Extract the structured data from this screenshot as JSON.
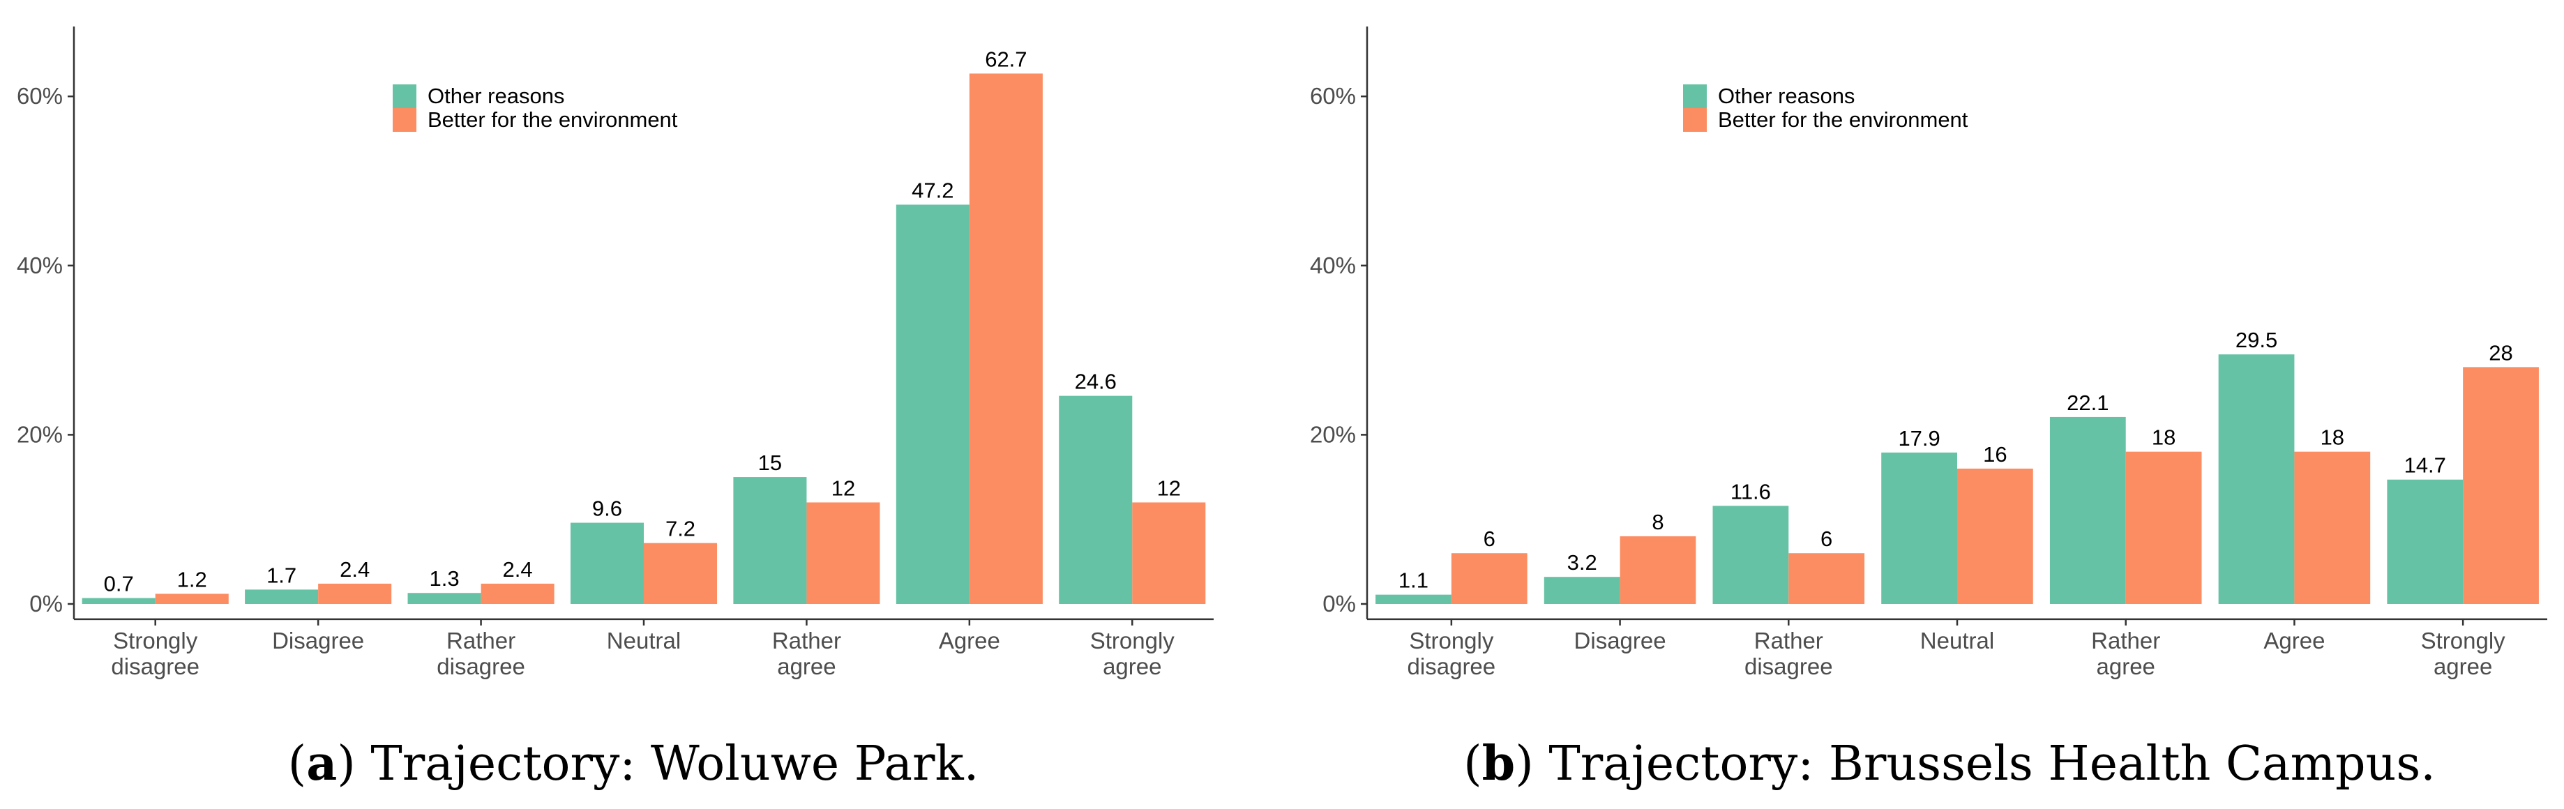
{
  "colors": {
    "other": "#66c2a5",
    "env": "#fc8d62",
    "axis": "#333333"
  },
  "chart_data": [
    {
      "type": "bar",
      "title": "",
      "xlabel": "",
      "ylabel": "",
      "ylim": [
        0,
        68
      ],
      "y_ticks": [
        "0%",
        "20%",
        "40%",
        "60%"
      ],
      "y_tick_values": [
        0,
        20,
        40,
        60
      ],
      "legend": [
        "Other reasons",
        "Better for the environment"
      ],
      "categories": [
        "Strongly\ndisagree",
        "Disagree",
        "Rather\ndisagree",
        "Neutral",
        "Rather\nagree",
        "Agree",
        "Strongly\nagree"
      ],
      "series": [
        {
          "name": "Other reasons",
          "values": [
            0.7,
            1.7,
            1.3,
            9.6,
            15,
            47.2,
            24.6
          ]
        },
        {
          "name": "Better for the environment",
          "values": [
            1.2,
            2.4,
            2.4,
            7.2,
            12,
            62.7,
            12
          ]
        }
      ],
      "caption": {
        "letter": "a",
        "text": "Trajectory: Woluwe Park."
      }
    },
    {
      "type": "bar",
      "title": "",
      "xlabel": "",
      "ylabel": "",
      "ylim": [
        0,
        68
      ],
      "y_ticks": [
        "0%",
        "20%",
        "40%",
        "60%"
      ],
      "y_tick_values": [
        0,
        20,
        40,
        60
      ],
      "legend": [
        "Other reasons",
        "Better for the environment"
      ],
      "categories": [
        "Strongly\ndisagree",
        "Disagree",
        "Rather\ndisagree",
        "Neutral",
        "Rather\nagree",
        "Agree",
        "Strongly\nagree"
      ],
      "series": [
        {
          "name": "Other reasons",
          "values": [
            1.1,
            3.2,
            11.6,
            17.9,
            22.1,
            29.5,
            14.7
          ]
        },
        {
          "name": "Better for the environment",
          "values": [
            6,
            8,
            6,
            16,
            18,
            18,
            28
          ]
        }
      ],
      "caption": {
        "letter": "b",
        "text": "Trajectory: Brussels Health Campus."
      }
    }
  ]
}
